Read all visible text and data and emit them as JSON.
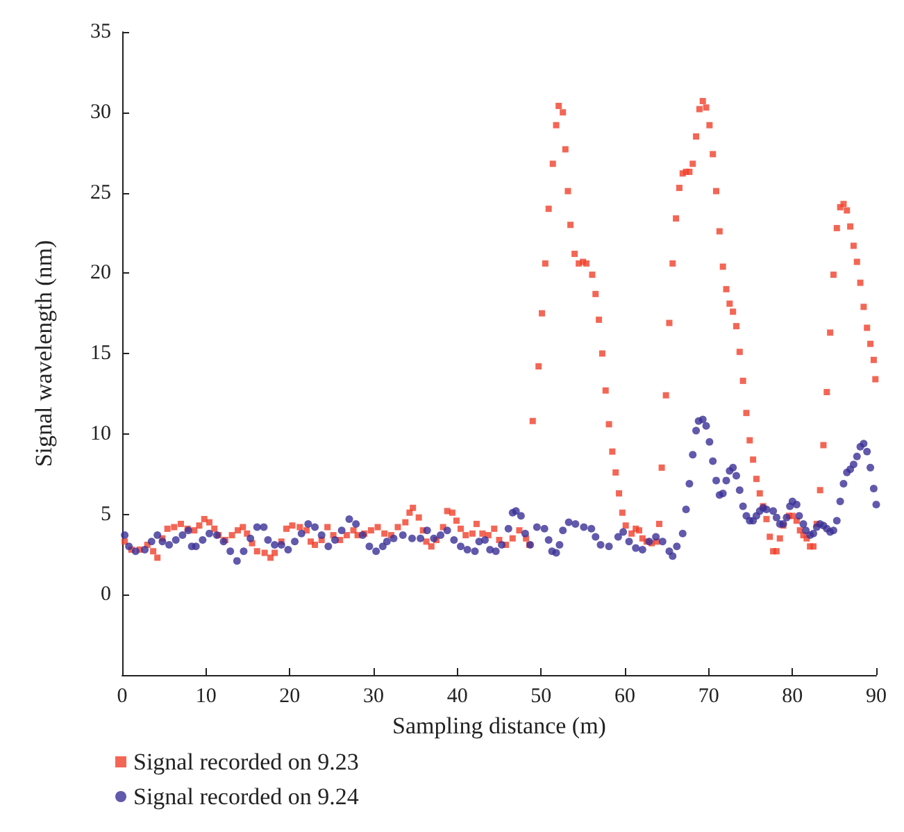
{
  "chart_data": {
    "type": "scatter",
    "xlabel": "Sampling distance (m)",
    "ylabel": "Signal wavelength (nm)",
    "xlim": [
      0,
      90
    ],
    "ylim": [
      -5,
      35
    ],
    "xticks": [
      0,
      10,
      20,
      30,
      40,
      50,
      60,
      70,
      80,
      90
    ],
    "yticks": [
      0,
      5,
      10,
      15,
      20,
      25,
      30,
      35
    ],
    "grid": false,
    "legend": "bottom left",
    "series": [
      {
        "name": "Signal recorded on 9.23",
        "color": "#f0402a",
        "marker": "square",
        "x": [
          0.3,
          1.1,
          2.1,
          3.0,
          3.7,
          4.2,
          4.8,
          5.4,
          6.2,
          7.0,
          7.8,
          8.6,
          9.2,
          9.8,
          10.4,
          11.0,
          11.5,
          12.3,
          13.1,
          13.8,
          14.4,
          14.9,
          15.5,
          16.1,
          17.0,
          17.7,
          18.2,
          19.0,
          19.6,
          20.3,
          21.2,
          22.0,
          22.5,
          23.0,
          23.8,
          24.5,
          25.2,
          26.0,
          26.8,
          27.6,
          28.1,
          28.9,
          29.7,
          30.5,
          31.3,
          32.1,
          32.9,
          33.8,
          34.3,
          34.7,
          35.4,
          35.9,
          36.3,
          36.9,
          37.5,
          38.3,
          38.8,
          39.4,
          39.9,
          40.4,
          41.0,
          41.8,
          42.3,
          43.0,
          43.7,
          44.4,
          45.0,
          45.8,
          46.6,
          47.4,
          48.2,
          48.6,
          49.0,
          49.7,
          50.1,
          50.5,
          50.9,
          51.4,
          51.8,
          52.1,
          52.6,
          52.9,
          53.2,
          53.5,
          54.0,
          54.5,
          55.0,
          55.4,
          56.1,
          56.5,
          56.9,
          57.3,
          57.7,
          58.1,
          58.5,
          58.9,
          59.3,
          59.7,
          60.1,
          60.8,
          61.3,
          61.7,
          62.1,
          62.6,
          63.2,
          63.8,
          64.1,
          64.4,
          64.9,
          65.3,
          65.7,
          66.1,
          66.5,
          66.9,
          67.3,
          67.7,
          68.1,
          68.5,
          68.9,
          69.3,
          69.7,
          70.1,
          70.5,
          70.9,
          71.3,
          71.7,
          72.1,
          72.5,
          72.9,
          73.3,
          73.7,
          74.1,
          74.5,
          74.9,
          75.3,
          75.7,
          76.1,
          76.5,
          76.9,
          77.3,
          77.7,
          78.1,
          78.5,
          78.9,
          79.6,
          80.0,
          80.5,
          80.9,
          81.3,
          81.7,
          82.1,
          82.5,
          82.9,
          83.3,
          83.7,
          84.1,
          84.5,
          84.9,
          85.3,
          85.7,
          86.1,
          86.5,
          86.9,
          87.3,
          87.7,
          88.1,
          88.5,
          88.9,
          89.3,
          89.7,
          89.9
        ],
        "values": [
          3.3,
          2.8,
          2.8,
          3.1,
          2.7,
          2.3,
          3.5,
          4.1,
          4.2,
          4.4,
          4.1,
          4.0,
          4.3,
          4.7,
          4.5,
          4.1,
          3.7,
          3.4,
          3.7,
          4.0,
          4.2,
          3.8,
          3.2,
          2.7,
          2.6,
          2.3,
          2.6,
          3.3,
          4.1,
          4.3,
          4.2,
          4.0,
          3.3,
          3.1,
          3.4,
          4.2,
          3.7,
          3.4,
          3.7,
          4.0,
          3.7,
          3.8,
          4.0,
          4.2,
          3.8,
          3.7,
          4.2,
          4.5,
          5.1,
          5.4,
          4.8,
          4.0,
          3.3,
          3.0,
          3.4,
          4.2,
          5.2,
          5.1,
          4.6,
          4.1,
          3.7,
          3.8,
          4.4,
          3.8,
          3.7,
          4.1,
          3.4,
          3.1,
          3.5,
          4.0,
          3.5,
          3.1,
          10.8,
          14.2,
          17.5,
          20.6,
          24.0,
          26.8,
          29.2,
          30.4,
          30.0,
          27.7,
          25.1,
          23.0,
          21.2,
          20.6,
          20.7,
          20.6,
          19.9,
          18.7,
          17.1,
          15.0,
          12.7,
          10.6,
          8.9,
          7.6,
          6.3,
          5.1,
          4.3,
          3.8,
          4.1,
          4.0,
          3.5,
          3.3,
          3.2,
          3.3,
          4.4,
          7.9,
          12.4,
          16.9,
          20.6,
          23.4,
          25.3,
          26.2,
          26.3,
          26.3,
          26.8,
          28.5,
          30.2,
          30.7,
          30.3,
          29.2,
          27.4,
          25.1,
          22.6,
          20.4,
          19.0,
          18.1,
          17.6,
          16.7,
          15.1,
          13.3,
          11.3,
          9.6,
          8.4,
          7.2,
          6.3,
          5.5,
          4.7,
          3.6,
          2.7,
          2.7,
          3.5,
          4.3,
          4.9,
          4.9,
          4.6,
          4.0,
          3.7,
          3.5,
          3.0,
          3.0,
          4.4,
          6.5,
          9.3,
          12.6,
          16.3,
          19.9,
          22.8,
          24.1,
          24.3,
          23.9,
          22.9,
          21.7,
          20.7,
          19.4,
          17.9,
          16.6,
          15.6,
          14.6,
          13.4
        ]
      },
      {
        "name": "Signal recorded on 9.24",
        "color": "#3a2f96",
        "marker": "circle",
        "x": [
          0.3,
          0.8,
          1.6,
          2.7,
          3.5,
          4.2,
          4.8,
          5.6,
          6.4,
          7.2,
          7.9,
          8.3,
          8.8,
          9.6,
          10.4,
          11.3,
          12.1,
          12.9,
          13.7,
          14.5,
          15.3,
          16.1,
          16.9,
          17.4,
          18.2,
          19.0,
          19.8,
          20.6,
          21.4,
          22.2,
          23.0,
          23.8,
          24.6,
          25.4,
          26.2,
          27.1,
          27.9,
          28.7,
          29.5,
          30.3,
          31.1,
          31.6,
          32.4,
          33.5,
          34.6,
          35.6,
          36.4,
          37.2,
          38.0,
          38.8,
          39.6,
          40.4,
          41.2,
          42.1,
          42.6,
          43.3,
          43.9,
          44.6,
          45.3,
          46.1,
          46.6,
          47.0,
          47.6,
          48.1,
          48.7,
          49.5,
          50.4,
          50.9,
          51.3,
          51.8,
          52.2,
          52.6,
          53.3,
          54.1,
          55.1,
          56.0,
          56.5,
          57.1,
          58.1,
          59.2,
          59.8,
          60.5,
          61.3,
          62.1,
          62.9,
          63.7,
          64.5,
          65.3,
          65.7,
          66.2,
          66.9,
          67.3,
          67.7,
          68.1,
          68.5,
          68.8,
          69.3,
          69.7,
          70.1,
          70.5,
          70.9,
          71.3,
          71.7,
          72.1,
          72.5,
          72.9,
          73.3,
          73.7,
          74.1,
          74.5,
          74.9,
          75.3,
          75.7,
          76.1,
          76.5,
          76.9,
          77.7,
          78.1,
          78.5,
          78.9,
          79.3,
          79.7,
          80.0,
          80.5,
          80.8,
          81.3,
          81.6,
          82.1,
          82.5,
          82.9,
          83.3,
          83.7,
          84.1,
          84.5,
          84.9,
          85.3,
          85.7,
          86.1,
          86.5,
          86.9,
          87.3,
          87.7,
          88.1,
          88.5,
          88.9,
          89.3,
          89.7,
          90.0
        ],
        "values": [
          3.7,
          3.0,
          2.7,
          2.8,
          3.3,
          3.7,
          3.3,
          3.1,
          3.4,
          3.7,
          4.0,
          3.0,
          3.0,
          3.4,
          3.8,
          3.7,
          3.3,
          2.7,
          2.1,
          2.7,
          3.5,
          4.2,
          4.2,
          3.4,
          3.1,
          3.1,
          2.8,
          3.3,
          3.8,
          4.4,
          4.2,
          3.7,
          3.0,
          3.4,
          4.0,
          4.7,
          4.4,
          3.7,
          3.0,
          2.7,
          3.0,
          3.3,
          3.5,
          3.7,
          3.5,
          3.5,
          4.0,
          3.5,
          3.7,
          4.0,
          3.4,
          3.0,
          2.8,
          2.7,
          3.3,
          3.4,
          2.8,
          2.7,
          3.1,
          4.1,
          5.1,
          5.2,
          4.9,
          3.8,
          3.1,
          4.2,
          4.1,
          3.4,
          2.7,
          2.6,
          3.1,
          4.0,
          4.5,
          4.4,
          4.2,
          4.1,
          3.6,
          3.1,
          3.0,
          3.6,
          3.9,
          3.3,
          2.9,
          2.8,
          3.3,
          3.6,
          3.3,
          2.7,
          2.4,
          3.0,
          3.8,
          5.3,
          6.9,
          8.7,
          10.2,
          10.8,
          10.9,
          10.5,
          9.5,
          8.3,
          7.1,
          6.2,
          6.3,
          7.1,
          7.7,
          7.9,
          7.4,
          6.5,
          5.5,
          4.9,
          4.6,
          4.6,
          4.9,
          5.2,
          5.4,
          5.3,
          5.2,
          4.8,
          4.4,
          4.4,
          4.8,
          5.5,
          5.8,
          5.6,
          4.9,
          4.4,
          4.0,
          3.7,
          3.8,
          4.2,
          4.4,
          4.3,
          4.1,
          3.9,
          4.0,
          4.6,
          5.8,
          6.9,
          7.6,
          7.8,
          8.1,
          8.6,
          9.2,
          9.4,
          8.9,
          7.9,
          6.6,
          5.6
        ]
      }
    ]
  }
}
